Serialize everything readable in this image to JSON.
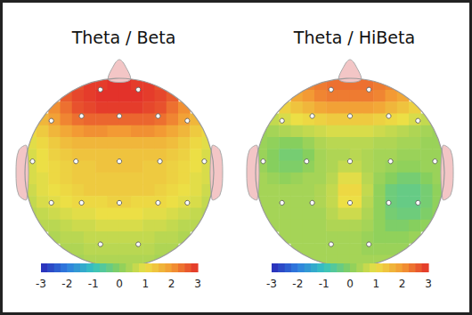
{
  "chart_data": [
    {
      "type": "heatmap",
      "title": "Theta / Beta",
      "cells": [
        [
          null,
          null,
          null,
          null,
          2.7,
          2.9,
          2.9,
          3.0,
          3.0,
          2.9,
          2.9,
          2.7,
          null,
          null,
          null,
          null
        ],
        [
          null,
          null,
          null,
          2.6,
          2.8,
          2.9,
          3.0,
          3.0,
          3.0,
          3.0,
          2.9,
          2.8,
          2.6,
          null,
          null,
          null
        ],
        [
          null,
          null,
          2.1,
          2.4,
          2.7,
          2.8,
          2.9,
          2.9,
          2.9,
          2.9,
          2.8,
          2.7,
          2.4,
          2.1,
          null,
          null
        ],
        [
          null,
          1.6,
          1.9,
          2.2,
          2.4,
          2.5,
          2.5,
          2.5,
          2.5,
          2.5,
          2.5,
          2.4,
          2.2,
          1.9,
          1.6,
          null
        ],
        [
          1.1,
          1.3,
          1.6,
          1.8,
          2.0,
          2.1,
          2.1,
          2.0,
          2.0,
          2.1,
          2.1,
          2.0,
          1.8,
          1.6,
          1.3,
          1.1
        ],
        [
          0.9,
          1.1,
          1.3,
          1.5,
          1.6,
          1.6,
          1.6,
          1.6,
          1.6,
          1.6,
          1.6,
          1.6,
          1.5,
          1.3,
          1.1,
          0.9
        ],
        [
          0.8,
          1.0,
          1.2,
          1.3,
          1.4,
          1.4,
          1.4,
          1.4,
          1.4,
          1.4,
          1.4,
          1.4,
          1.3,
          1.2,
          1.0,
          0.8
        ],
        [
          0.8,
          1.0,
          1.1,
          1.2,
          1.3,
          1.3,
          1.4,
          1.4,
          1.4,
          1.4,
          1.3,
          1.3,
          1.2,
          1.1,
          1.0,
          0.8
        ],
        [
          0.8,
          0.9,
          1.1,
          1.2,
          1.3,
          1.3,
          1.3,
          1.3,
          1.3,
          1.3,
          1.3,
          1.3,
          1.2,
          1.1,
          0.9,
          0.8
        ],
        [
          0.7,
          0.9,
          1.0,
          1.1,
          1.2,
          1.3,
          1.3,
          1.3,
          1.3,
          1.3,
          1.3,
          1.2,
          1.1,
          1.0,
          0.9,
          0.7
        ],
        [
          0.6,
          0.8,
          0.9,
          1.0,
          1.1,
          1.1,
          1.1,
          1.2,
          1.2,
          1.1,
          1.1,
          1.1,
          1.0,
          0.9,
          0.8,
          0.6
        ],
        [
          0.5,
          0.6,
          0.7,
          0.8,
          0.9,
          0.9,
          1.0,
          1.0,
          1.0,
          1.0,
          0.9,
          0.9,
          0.8,
          0.7,
          0.6,
          0.5
        ],
        [
          null,
          0.5,
          0.5,
          0.6,
          0.7,
          0.7,
          0.8,
          0.8,
          0.8,
          0.8,
          0.7,
          0.7,
          0.6,
          0.5,
          0.5,
          null
        ],
        [
          null,
          null,
          0.4,
          0.5,
          0.5,
          0.6,
          0.6,
          0.6,
          0.6,
          0.6,
          0.6,
          0.5,
          0.5,
          0.4,
          null,
          null
        ],
        [
          null,
          null,
          null,
          0.4,
          0.4,
          0.5,
          0.5,
          0.5,
          0.5,
          0.5,
          0.5,
          0.4,
          0.4,
          null,
          null,
          null
        ],
        [
          null,
          null,
          null,
          null,
          0.3,
          0.4,
          0.4,
          0.4,
          0.4,
          0.4,
          0.4,
          0.3,
          null,
          null,
          null,
          null
        ]
      ],
      "colorbar": {
        "range": [
          -3,
          3
        ],
        "ticks": [
          -3,
          -2,
          -1,
          0,
          1,
          2,
          3
        ]
      }
    },
    {
      "type": "heatmap",
      "title": "Theta / HiBeta",
      "cells": [
        [
          null,
          null,
          null,
          null,
          2.2,
          2.3,
          2.4,
          2.4,
          2.4,
          2.4,
          2.3,
          2.2,
          null,
          null,
          null,
          null
        ],
        [
          null,
          null,
          null,
          1.8,
          2.0,
          2.2,
          2.3,
          2.3,
          2.3,
          2.3,
          2.2,
          2.0,
          1.8,
          null,
          null,
          null
        ],
        [
          null,
          null,
          1.2,
          1.4,
          1.6,
          1.8,
          1.9,
          1.9,
          1.9,
          1.9,
          1.8,
          1.6,
          1.4,
          1.2,
          null,
          null
        ],
        [
          null,
          0.6,
          0.8,
          1.0,
          1.1,
          1.2,
          1.3,
          1.3,
          1.3,
          1.3,
          1.2,
          1.1,
          1.0,
          0.8,
          0.6,
          null
        ],
        [
          0.2,
          0.3,
          0.4,
          0.5,
          0.6,
          0.7,
          0.8,
          0.8,
          0.8,
          0.8,
          0.7,
          0.6,
          0.5,
          0.4,
          0.3,
          0.2
        ],
        [
          0.2,
          0.1,
          0.0,
          0.0,
          0.2,
          0.4,
          0.5,
          0.5,
          0.5,
          0.5,
          0.4,
          0.4,
          0.3,
          0.3,
          0.2,
          0.2
        ],
        [
          0.2,
          0.0,
          -0.2,
          -0.2,
          0.0,
          0.3,
          0.4,
          0.4,
          0.5,
          0.4,
          0.3,
          0.3,
          0.2,
          0.2,
          0.2,
          0.2
        ],
        [
          0.2,
          0.0,
          -0.1,
          -0.1,
          0.1,
          0.3,
          0.4,
          0.6,
          0.6,
          0.4,
          0.3,
          0.2,
          0.1,
          0.1,
          0.2,
          0.2
        ],
        [
          0.3,
          0.2,
          0.1,
          0.2,
          0.3,
          0.3,
          0.5,
          0.9,
          0.9,
          0.5,
          0.2,
          0.0,
          -0.2,
          -0.2,
          0.0,
          0.2
        ],
        [
          0.3,
          0.3,
          0.3,
          0.3,
          0.3,
          0.4,
          0.6,
          1.1,
          1.1,
          0.6,
          0.1,
          -0.3,
          -0.4,
          -0.4,
          -0.2,
          0.1
        ],
        [
          0.3,
          0.3,
          0.3,
          0.3,
          0.3,
          0.4,
          0.6,
          1.0,
          1.0,
          0.5,
          0.1,
          -0.3,
          -0.4,
          -0.4,
          -0.2,
          0.1
        ],
        [
          0.3,
          0.3,
          0.3,
          0.3,
          0.3,
          0.3,
          0.5,
          0.7,
          0.7,
          0.4,
          0.1,
          -0.2,
          -0.3,
          -0.3,
          -0.1,
          0.1
        ],
        [
          null,
          0.3,
          0.3,
          0.3,
          0.3,
          0.3,
          0.4,
          0.4,
          0.4,
          0.3,
          0.1,
          -0.1,
          -0.1,
          0.0,
          0.1,
          null
        ],
        [
          null,
          null,
          0.3,
          0.3,
          0.3,
          0.3,
          0.3,
          0.3,
          0.3,
          0.2,
          0.1,
          0.1,
          0.1,
          0.2,
          null,
          null
        ],
        [
          null,
          null,
          null,
          0.3,
          0.3,
          0.3,
          0.3,
          0.3,
          0.3,
          0.2,
          0.2,
          0.2,
          0.2,
          null,
          null,
          null
        ],
        [
          null,
          null,
          null,
          null,
          0.3,
          0.3,
          0.3,
          0.3,
          0.3,
          0.3,
          0.3,
          0.3,
          null,
          null,
          null,
          null
        ]
      ],
      "colorbar": {
        "range": [
          -3,
          3
        ],
        "ticks": [
          -3,
          -2,
          -1,
          0,
          1,
          2,
          3
        ]
      }
    }
  ]
}
